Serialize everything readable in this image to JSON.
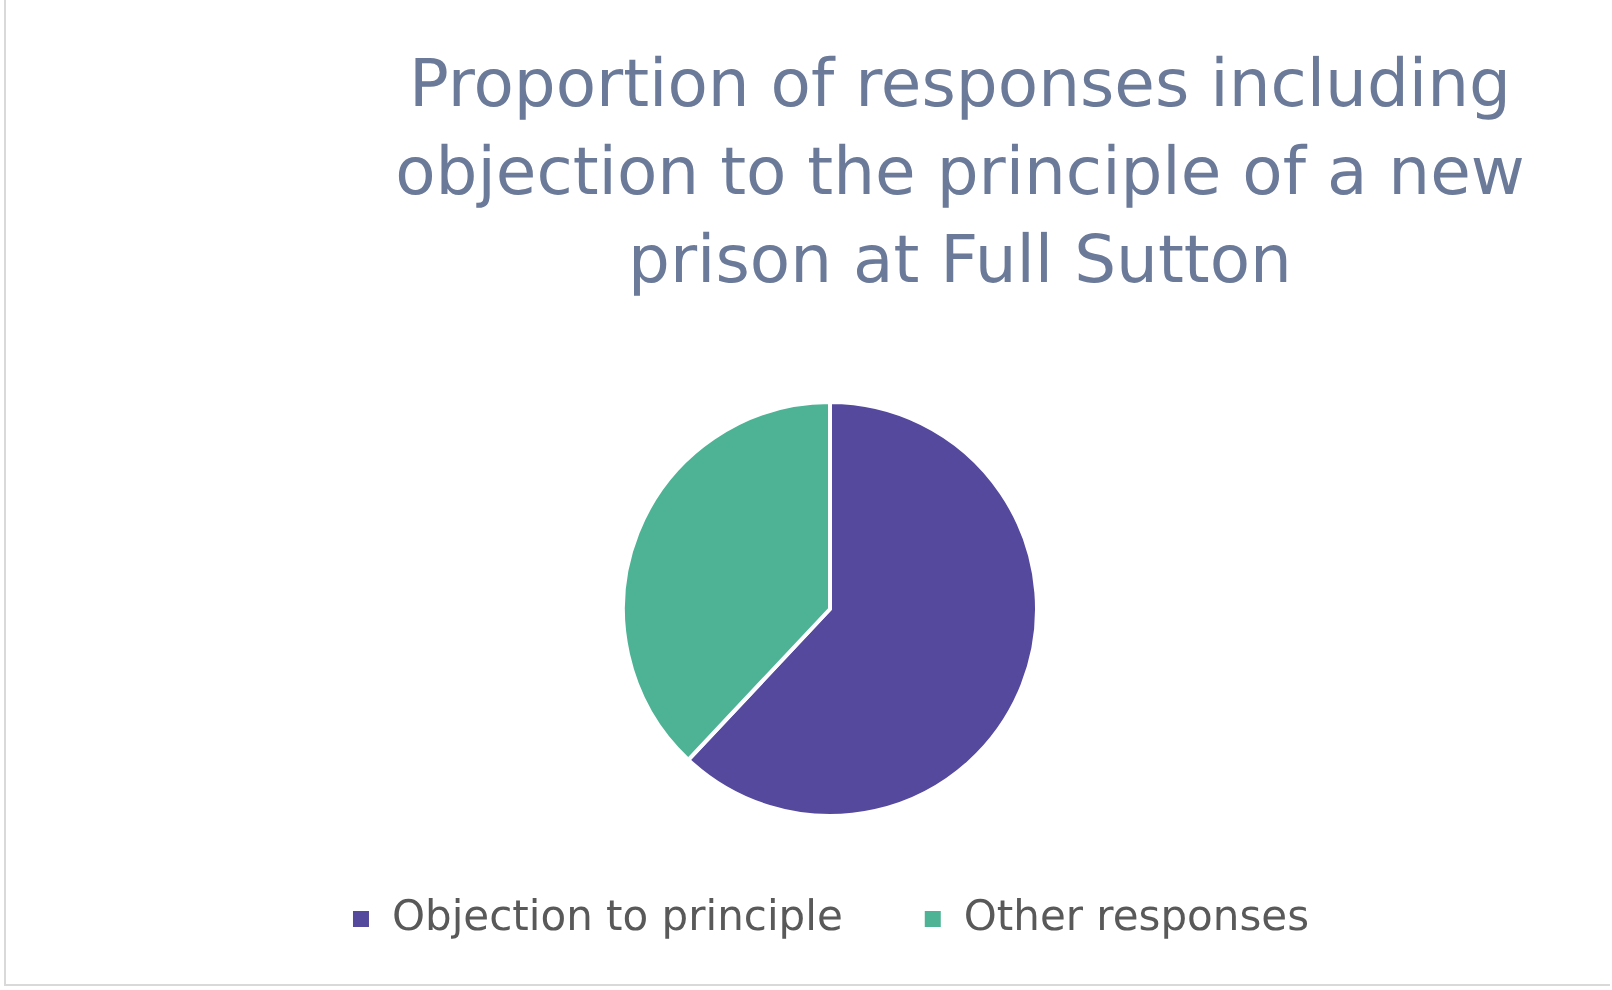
{
  "chart_data": {
    "type": "pie",
    "title": "Proportion of responses including objection to the principle of a new prison at Full Sutton",
    "categories": [
      "Objection to principle",
      "Other responses"
    ],
    "values": [
      62,
      38
    ],
    "colors": [
      "#55499d",
      "#4db394"
    ],
    "legend": "bottom"
  }
}
